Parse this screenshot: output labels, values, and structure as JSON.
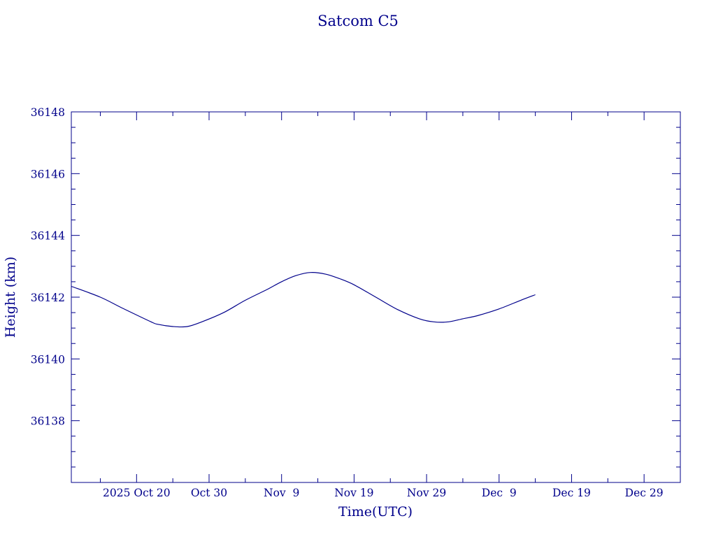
{
  "chart_data": {
    "type": "line",
    "title": "Satcom C5",
    "xlabel": "Time(UTC)",
    "ylabel": "Height (km)",
    "color": "#00008b",
    "grid": false,
    "legend": "none",
    "xlim": [
      "2025-10-11",
      "2026-01-03"
    ],
    "ylim": [
      36136,
      36148
    ],
    "x_ticks": [
      {
        "date": "2025-10-20",
        "label": "2025 Oct 20"
      },
      {
        "date": "2025-10-30",
        "label": "Oct 30"
      },
      {
        "date": "2025-11-09",
        "label": "Nov  9"
      },
      {
        "date": "2025-11-19",
        "label": "Nov 19"
      },
      {
        "date": "2025-11-29",
        "label": "Nov 29"
      },
      {
        "date": "2025-12-09",
        "label": "Dec  9"
      },
      {
        "date": "2025-12-19",
        "label": "Dec 19"
      },
      {
        "date": "2025-12-29",
        "label": "Dec 29"
      }
    ],
    "y_ticks": [
      36138,
      36140,
      36142,
      36144,
      36146,
      36148
    ],
    "series": [
      {
        "x": [
          "2025-10-11",
          "2025-10-15",
          "2025-10-18",
          "2025-10-22",
          "2025-10-23",
          "2025-10-25",
          "2025-10-27",
          "2025-10-29",
          "2025-11-01",
          "2025-11-04",
          "2025-11-07",
          "2025-11-09",
          "2025-11-11",
          "2025-11-13",
          "2025-11-15",
          "2025-11-17",
          "2025-11-19",
          "2025-11-22",
          "2025-11-25",
          "2025-11-28",
          "2025-11-30",
          "2025-12-02",
          "2025-12-04",
          "2025-12-06",
          "2025-12-09",
          "2025-12-12",
          "2025-12-14"
        ],
        "y": [
          36142.35,
          36142.0,
          36141.65,
          36141.2,
          36141.12,
          36141.05,
          36141.05,
          36141.2,
          36141.5,
          36141.9,
          36142.25,
          36142.5,
          36142.7,
          36142.8,
          36142.75,
          36142.6,
          36142.4,
          36142.0,
          36141.6,
          36141.3,
          36141.2,
          36141.2,
          36141.3,
          36141.4,
          36141.62,
          36141.9,
          36142.08
        ]
      }
    ]
  }
}
